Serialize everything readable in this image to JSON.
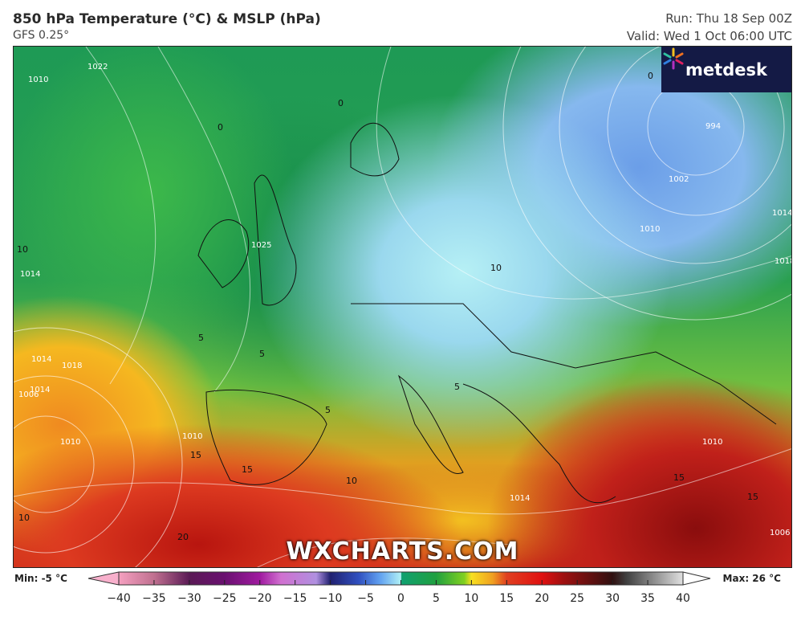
{
  "header": {
    "title": "850 hPa Temperature (°C) & MSLP (hPa)",
    "model": "GFS 0.25°",
    "run": "Run: Thu 18 Sep 00Z",
    "valid": "Valid: Wed 1 Oct 06:00 UTC"
  },
  "logo": {
    "text": "metdesk",
    "icon": "flower-logo-icon"
  },
  "watermark": "WXCHARTS.COM",
  "colorbar": {
    "min_label": "Min: -5 °C",
    "max_label": "Max: 26 °C",
    "ticks": [
      "−40",
      "−35",
      "−30",
      "−25",
      "−20",
      "−15",
      "−10",
      "−5",
      "0",
      "5",
      "10",
      "15",
      "20",
      "25",
      "30",
      "35",
      "40"
    ],
    "range": [
      -40,
      40
    ],
    "colors": [
      [
        "-40",
        "#f5a0c0"
      ],
      [
        "-35",
        "#c07090"
      ],
      [
        "-30",
        "#5a1a55"
      ],
      [
        "-25",
        "#6a1070"
      ],
      [
        "-20",
        "#a01aa0"
      ],
      [
        "-17",
        "#d070d0"
      ],
      [
        "-12",
        "#b090e0"
      ],
      [
        "-10",
        "#202070"
      ],
      [
        "-6",
        "#3050c0"
      ],
      [
        "-3",
        "#60a0f0"
      ],
      [
        "0",
        "#b0f0f5"
      ],
      [
        "0.1",
        "#10a070"
      ],
      [
        "5",
        "#20a040"
      ],
      [
        "9",
        "#80d020"
      ],
      [
        "10",
        "#f8e020"
      ],
      [
        "13",
        "#f0a020"
      ],
      [
        "15",
        "#e04020"
      ],
      [
        "20",
        "#e01010"
      ],
      [
        "23",
        "#a01010"
      ],
      [
        "27",
        "#601010"
      ],
      [
        "30",
        "#301010"
      ],
      [
        "32",
        "#404040"
      ],
      [
        "36",
        "#909090"
      ],
      [
        "40",
        "#e0e0e0"
      ]
    ]
  },
  "isobar_labels": [
    "1022",
    "1010",
    "1010",
    "1014",
    "1018",
    "1014",
    "1006",
    "1010",
    "1025",
    "1002",
    "994",
    "1010",
    "1014",
    "1018",
    "1014",
    "1010",
    "1014",
    "1006"
  ],
  "temperature_labels": [
    "0",
    "0",
    "5",
    "5",
    "5",
    "10",
    "5",
    "10",
    "15",
    "15",
    "15",
    "20",
    "10",
    "15",
    "0",
    "10"
  ]
}
